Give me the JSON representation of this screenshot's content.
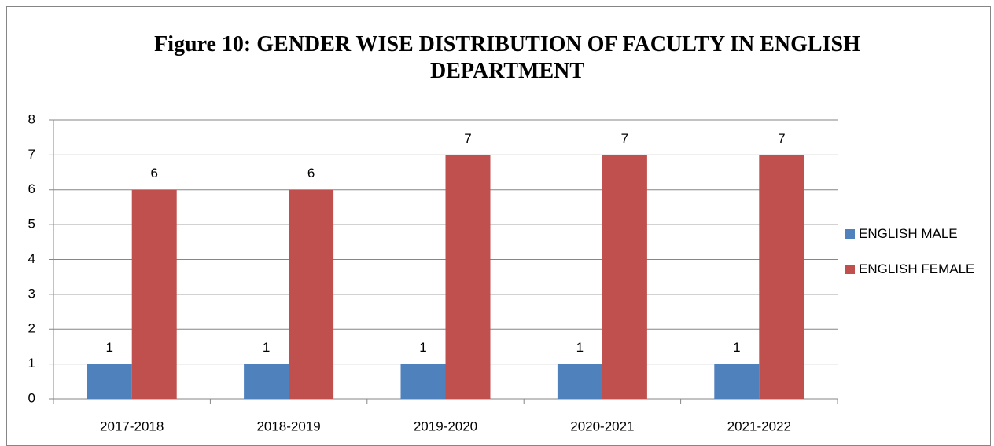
{
  "chart_data": {
    "type": "bar",
    "title": "Figure 10: GENDER WISE DISTRIBUTION OF FACULTY IN ENGLISH DEPARTMENT",
    "categories": [
      "2017-2018",
      "2018-2019",
      "2019-2020",
      "2020-2021",
      "2021-2022"
    ],
    "series": [
      {
        "name": "ENGLISH MALE",
        "color": "#4f81bd",
        "values": [
          1,
          1,
          1,
          1,
          1
        ]
      },
      {
        "name": "ENGLISH FEMALE",
        "color": "#c0504d",
        "values": [
          6,
          6,
          7,
          7,
          7
        ]
      }
    ],
    "ylim": [
      0,
      8
    ],
    "yticks": [
      0,
      1,
      2,
      3,
      4,
      5,
      6,
      7,
      8
    ],
    "grid": true,
    "legend": "right"
  }
}
